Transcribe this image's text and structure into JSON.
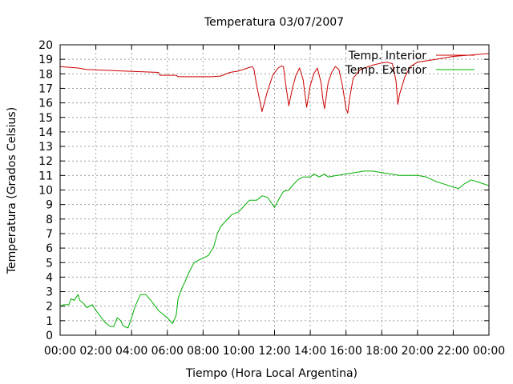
{
  "chart_data": {
    "type": "line",
    "title": "Temperatura 03/07/2007",
    "xlabel": "Tiempo (Hora Local Argentina)",
    "ylabel": "Temperatura (Grados Celsius)",
    "xlim": [
      0,
      24
    ],
    "ylim": [
      0,
      20
    ],
    "x_tick_labels": [
      "00:00",
      "02:00",
      "04:00",
      "06:00",
      "08:00",
      "10:00",
      "12:00",
      "14:00",
      "16:00",
      "18:00",
      "20:00",
      "22:00",
      "00:00"
    ],
    "y_tick_labels": [
      "0",
      "1",
      "2",
      "3",
      "4",
      "5",
      "6",
      "7",
      "8",
      "9",
      "10",
      "11",
      "12",
      "13",
      "14",
      "15",
      "16",
      "17",
      "18",
      "19",
      "20"
    ],
    "grid": true,
    "legend_position": "top-right",
    "series": [
      {
        "name": "Temp. Interior",
        "color": "#cc0000",
        "x": [
          0,
          1,
          1.5,
          2.5,
          3.5,
          4.5,
          5.5,
          5.6,
          6.5,
          6.6,
          7.5,
          8.5,
          9,
          9.5,
          10,
          10.5,
          10.75,
          10.85,
          11,
          11.3,
          11.6,
          11.9,
          12.2,
          12.4,
          12.5,
          12.6,
          12.8,
          13,
          13.2,
          13.4,
          13.6,
          13.7,
          13.8,
          14,
          14.2,
          14.4,
          14.6,
          14.7,
          14.8,
          15,
          15.2,
          15.4,
          15.6,
          15.8,
          16,
          16.1,
          16.2,
          16.4,
          16.8,
          17.5,
          18,
          18.3,
          18.6,
          18.8,
          18.9,
          19,
          19.3,
          19.6,
          20,
          21,
          22,
          23,
          24
        ],
        "y": [
          18.5,
          18.4,
          18.3,
          18.25,
          18.2,
          18.15,
          18.1,
          17.9,
          17.9,
          17.8,
          17.8,
          17.8,
          17.85,
          18.1,
          18.2,
          18.4,
          18.5,
          18.3,
          17.2,
          15.4,
          16.8,
          17.9,
          18.4,
          18.55,
          18.5,
          17.5,
          15.8,
          17,
          17.9,
          18.4,
          17.6,
          16.6,
          15.7,
          17.2,
          18,
          18.4,
          17.4,
          16.3,
          15.6,
          17.4,
          18.1,
          18.5,
          18.3,
          17.2,
          15.6,
          15.3,
          16.3,
          17.7,
          18.3,
          18.6,
          18.75,
          18.8,
          18.7,
          17.5,
          15.9,
          16.6,
          17.8,
          18.5,
          18.8,
          19.0,
          19.2,
          19.3,
          19.4
        ]
      },
      {
        "name": "Temp. Exterior",
        "color": "#00b000",
        "x": [
          0,
          0.2,
          0.5,
          0.6,
          0.8,
          1,
          1.1,
          1.3,
          1.5,
          1.8,
          2,
          2.2,
          2.5,
          2.8,
          3,
          3.2,
          3.4,
          3.5,
          3.6,
          3.8,
          4,
          4.2,
          4.5,
          4.8,
          5,
          5.2,
          5.5,
          5.8,
          6,
          6.3,
          6.5,
          6.6,
          6.8,
          7,
          7.2,
          7.5,
          7.8,
          8,
          8.3,
          8.6,
          8.8,
          9,
          9.3,
          9.6,
          10,
          10.3,
          10.6,
          11,
          11.3,
          11.6,
          12,
          12.3,
          12.5,
          12.8,
          13,
          13.3,
          13.6,
          14,
          14.2,
          14.5,
          14.8,
          15,
          15.5,
          16,
          16.5,
          17,
          17.5,
          18,
          18.5,
          19,
          19.5,
          20,
          20.5,
          21,
          21.5,
          22,
          22.3,
          22.6,
          23,
          23.5,
          24
        ],
        "y": [
          2,
          2.1,
          2.1,
          2.5,
          2.4,
          2.8,
          2.4,
          2.2,
          1.9,
          2.1,
          1.7,
          1.4,
          0.9,
          0.6,
          0.6,
          1.2,
          1,
          0.7,
          0.6,
          0.5,
          1.2,
          2,
          2.8,
          2.8,
          2.5,
          2.2,
          1.7,
          1.4,
          1.2,
          0.8,
          1.4,
          2.5,
          3.2,
          3.7,
          4.3,
          5,
          5.2,
          5.3,
          5.5,
          6.1,
          7,
          7.5,
          7.9,
          8.3,
          8.5,
          8.9,
          9.3,
          9.3,
          9.6,
          9.5,
          8.8,
          9.5,
          9.9,
          10,
          10.3,
          10.7,
          10.9,
          10.9,
          11.1,
          10.9,
          11.1,
          10.9,
          11,
          11.1,
          11.2,
          11.3,
          11.3,
          11.2,
          11.1,
          11,
          11,
          11,
          10.9,
          10.6,
          10.4,
          10.2,
          10.1,
          10.4,
          10.7,
          10.5,
          10.3
        ]
      }
    ]
  }
}
